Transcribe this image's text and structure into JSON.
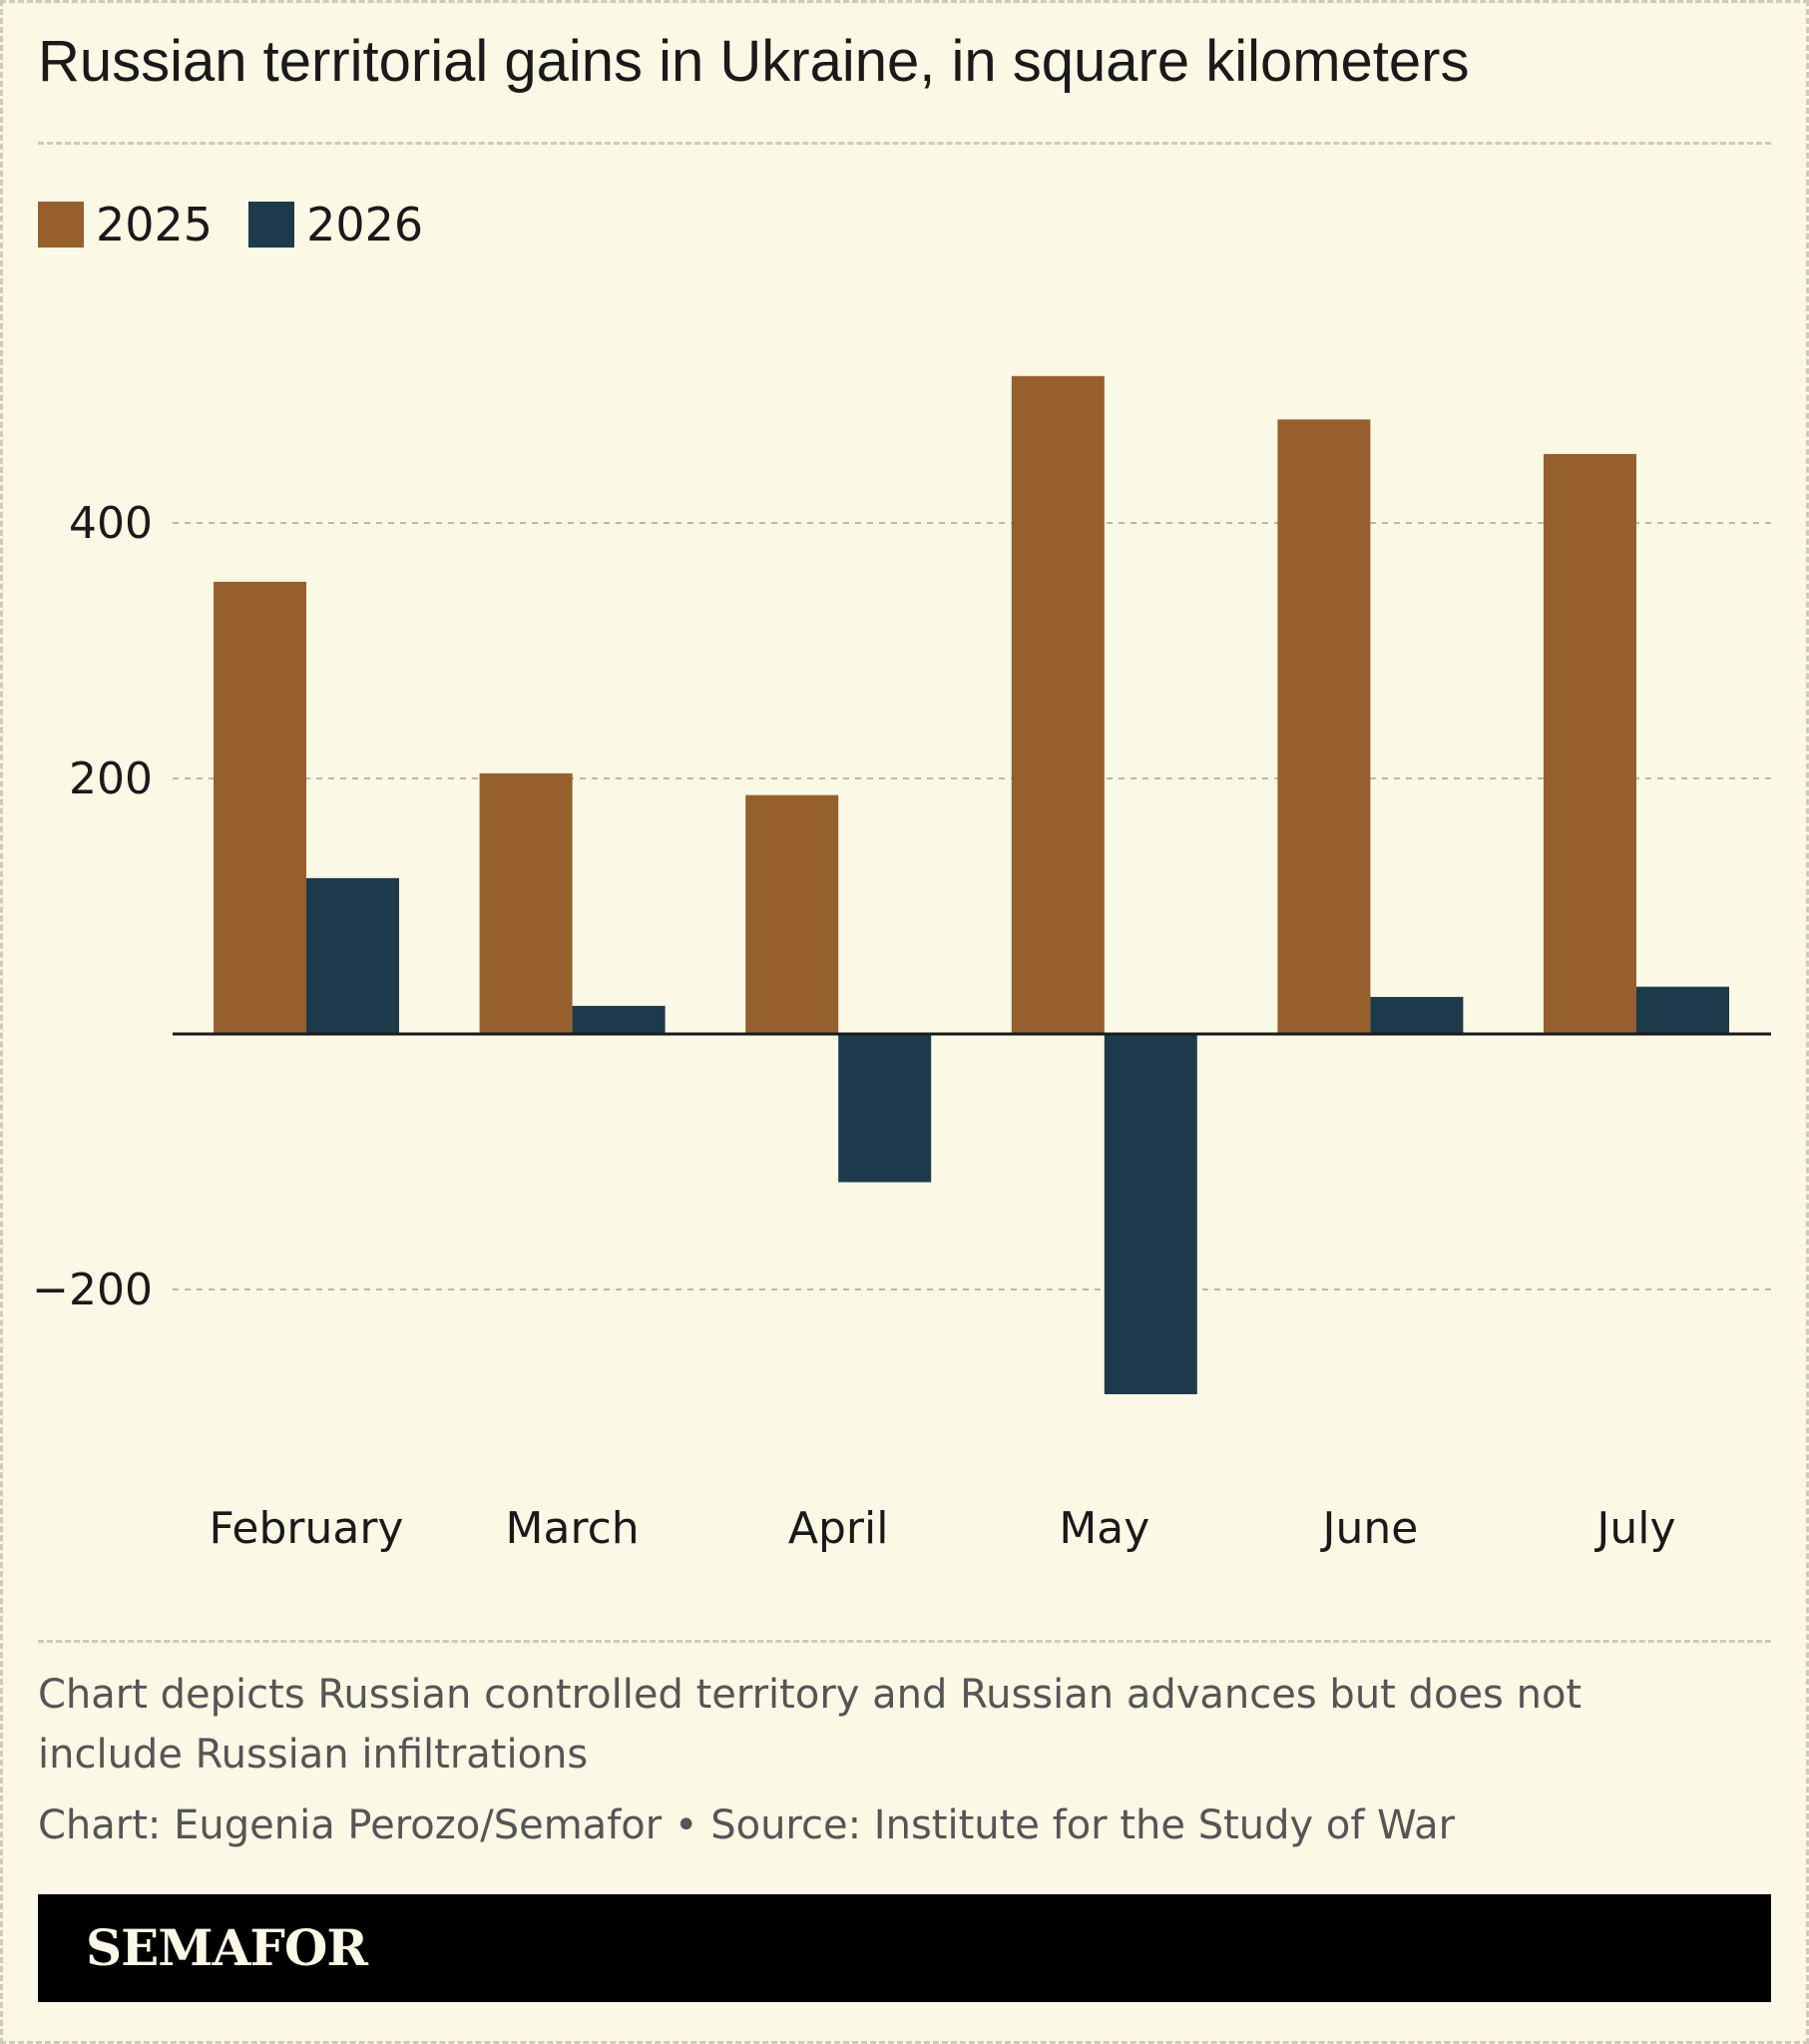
{
  "title": "Russian territorial gains in Ukraine, in square kilometers",
  "note": "Chart depicts Russian controlled territory and Russian advances but does not include Russian infiltrations",
  "credit": "Chart: Eugenia Perozo/Semafor • Source: Institute for the Study of War",
  "brand": "SEMAFOR",
  "colors": {
    "series_2025": "#96602e",
    "series_2026": "#1c3a4a",
    "background": "#fbf8e6",
    "gridline": "#bdb8aa"
  },
  "chart_data": {
    "type": "bar",
    "categories": [
      "February",
      "March",
      "April",
      "May",
      "June",
      "July"
    ],
    "series": [
      {
        "name": "2025",
        "values": [
          354,
          204,
          187,
          515,
          481,
          454
        ]
      },
      {
        "name": "2026",
        "values": [
          122,
          22,
          -116,
          -282,
          29,
          37
        ]
      }
    ],
    "yticks": [
      400,
      200,
      -200
    ],
    "ytick_labels": [
      "400",
      "200",
      "−200"
    ],
    "ylim": [
      -300,
      520
    ],
    "grid": true,
    "legend": "top-left",
    "xlabel": "",
    "ylabel": ""
  }
}
